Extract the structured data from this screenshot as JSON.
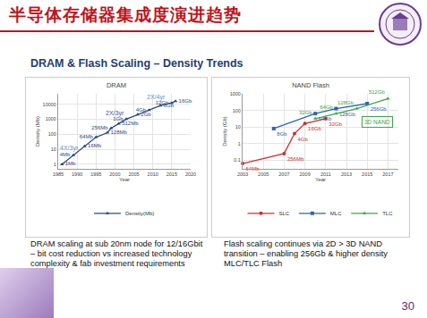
{
  "slide": {
    "title": "半导体存储器集成度演进趋势",
    "subtitle": "DRAM & Flash Scaling – Density Trends",
    "captions": [
      "DRAM scaling at sub 20nm node for 12/16Gbit – bit cost reduction vs increased technology complexity & fab investment requirements",
      "Flash scaling continues via 2D > 3D NAND transition – enabling 256Gb & higher density MLC/TLC Flash"
    ],
    "page": "30"
  },
  "chart_data": [
    {
      "type": "line",
      "title": "DRAM",
      "x_label": "Year",
      "y_label": "Density (Mb)",
      "log": "y",
      "grid": true,
      "legend": "bottom",
      "data_labels": true,
      "xlim": [
        1985,
        2020
      ],
      "xticks": [
        1985,
        1990,
        1995,
        2000,
        2005,
        2010,
        2015,
        2020
      ],
      "ylim": [
        0.5,
        50000
      ],
      "yticks": [
        1,
        10,
        100,
        1000,
        10000
      ],
      "series": [
        {
          "name": "Density(Mb)",
          "color": "#2e4a7d",
          "marker": "triangle-up",
          "line_style": "solid",
          "x": [
            1986,
            1989,
            1992,
            1995,
            1998,
            1999,
            2001,
            2003,
            2006,
            2009,
            2012,
            2015,
            2016
          ],
          "values": [
            1,
            4,
            16,
            64,
            128,
            256,
            512,
            1024,
            2048,
            4096,
            8192,
            12288,
            16384
          ],
          "value_labels": [
            "1Mb",
            "4Mb",
            "16Mb",
            "64Mb",
            "128Mb",
            "256Mb",
            "512Mb",
            "1Gb",
            "2Gb",
            "4Gb",
            "8Gb",
            "12Gb",
            "16Gb"
          ]
        }
      ],
      "annotations": [
        {
          "text": "4X/3yr",
          "x": 1988,
          "y": 12,
          "color": "#5b8fd6"
        },
        {
          "text": "2X/3yr",
          "x": 2000,
          "y": 2500,
          "color": "#3c4fb0"
        },
        {
          "text": "2X/4yr",
          "x": 2011,
          "y": 30000,
          "color": "#5b8fd6"
        }
      ]
    },
    {
      "type": "line",
      "title": "NAND Flash",
      "x_label": "Year",
      "y_label": "Density (Gb)",
      "log": "y",
      "grid": true,
      "legend": "bottom",
      "data_labels": true,
      "xlim": [
        2003,
        2018
      ],
      "xticks": [
        2003,
        2005,
        2007,
        2009,
        2011,
        2013,
        2015,
        2017
      ],
      "ylim": [
        0.03,
        1000
      ],
      "yticks": [
        0.1,
        1,
        10,
        100,
        1000
      ],
      "series": [
        {
          "name": "SLC",
          "color": "#d42a2a",
          "marker": "circle",
          "line_style": "solid",
          "x": [
            2003,
            2007,
            2008,
            2009,
            2011
          ],
          "values": [
            0.0625,
            0.25,
            4,
            16,
            32
          ],
          "value_labels": [
            "64Mb",
            "256Mb",
            "4Gb",
            "16Gb",
            "32Gb"
          ]
        },
        {
          "name": "MLC",
          "color": "#2a64b4",
          "marker": "square",
          "line_style": "solid",
          "x": [
            2006,
            2010,
            2012,
            2015
          ],
          "values": [
            8,
            64,
            128,
            256
          ],
          "value_labels": [
            "8Gb",
            "64Gb",
            "128Gb",
            "256Gb"
          ]
        },
        {
          "name": "TLC",
          "color": "#3aa64a",
          "marker": "triangle-up",
          "line_style": "solid",
          "x": [
            2010,
            2012,
            2014,
            2017
          ],
          "values": [
            32,
            64,
            128,
            512
          ],
          "value_labels": [
            "32Gb",
            "64Gb",
            "128Gb",
            "512Gb"
          ]
        }
      ],
      "annotations": [
        {
          "text": "3D NAND",
          "x": 2016,
          "y": 20,
          "color": "#3aa64a"
        }
      ]
    }
  ]
}
